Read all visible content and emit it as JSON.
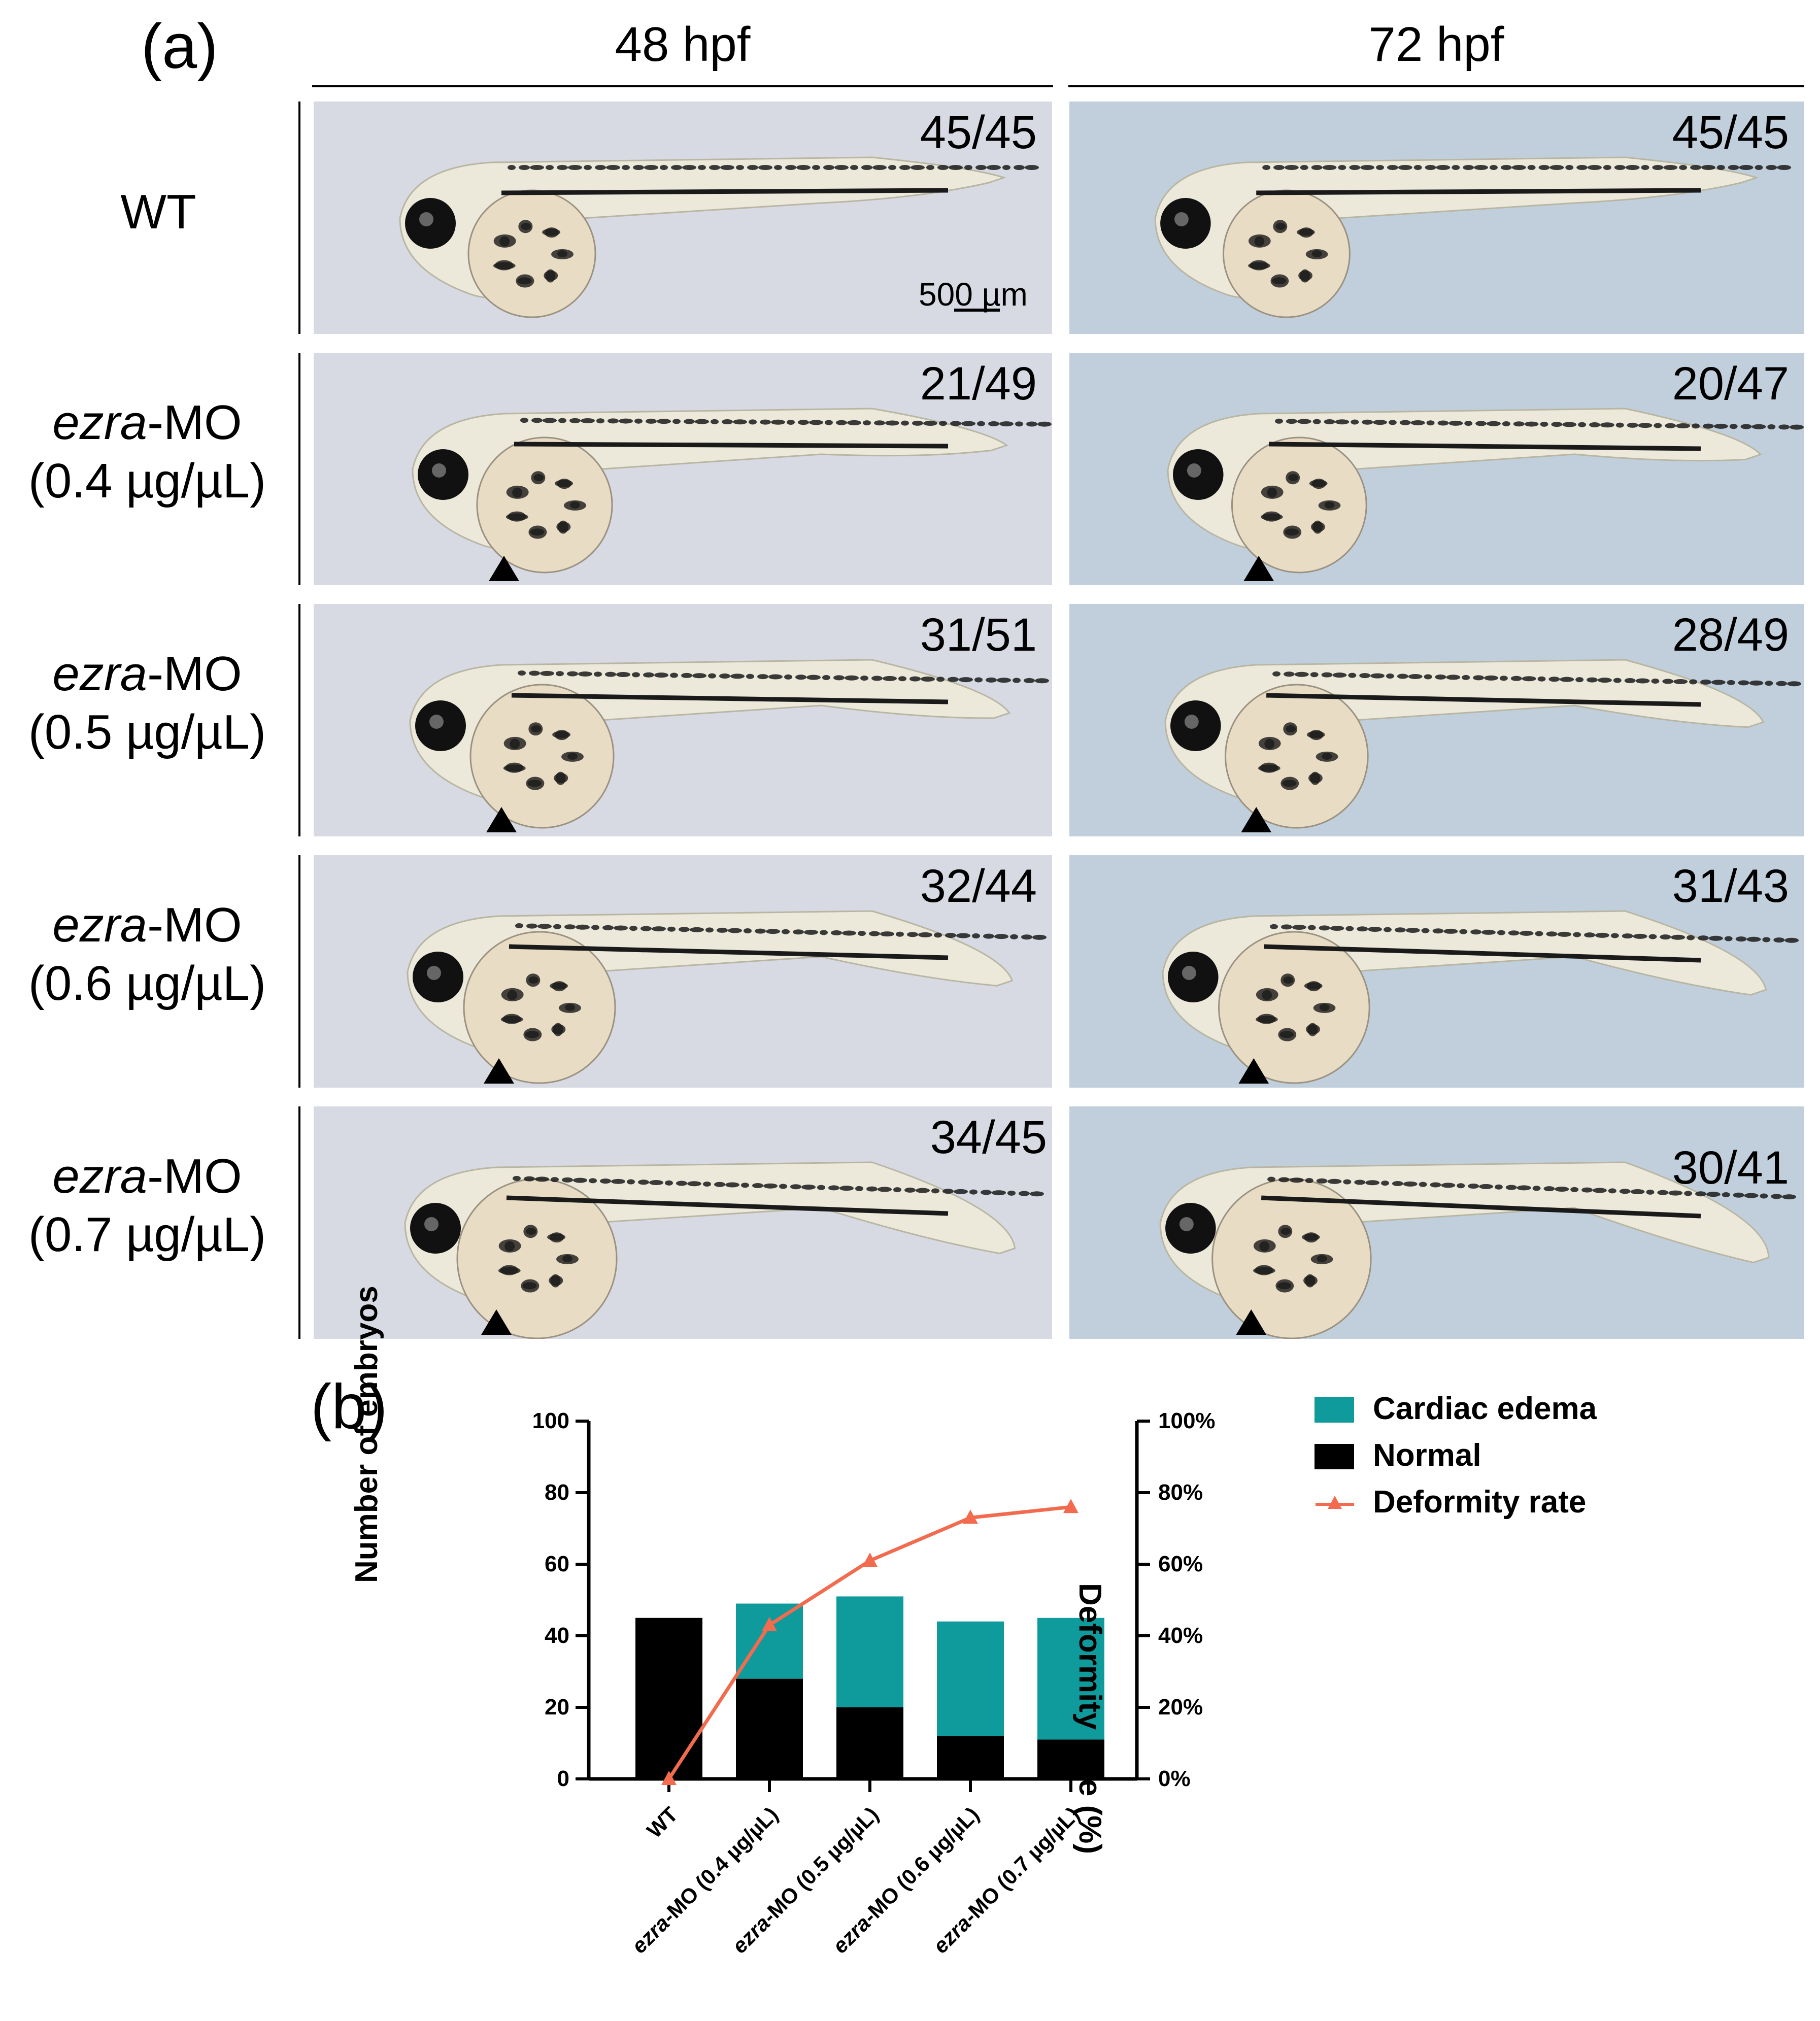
{
  "panel_a": {
    "label": "(a)",
    "columns": [
      "48 hpf",
      "72 hpf"
    ],
    "rows": [
      {
        "line1": "WT",
        "line1_italic": "",
        "line2": "",
        "counts": [
          "45/45",
          "45/45"
        ]
      },
      {
        "line1": "-MO",
        "line1_italic": "ezra",
        "line2": "(0.4 µg/µL)",
        "counts": [
          "21/49",
          "20/47"
        ]
      },
      {
        "line1": "-MO",
        "line1_italic": "ezra",
        "line2": "(0.5 µg/µL)",
        "counts": [
          "31/51",
          "28/49"
        ]
      },
      {
        "line1": "-MO",
        "line1_italic": "ezra",
        "line2": "(0.6 µg/µL)",
        "counts": [
          "32/44",
          "31/43"
        ]
      },
      {
        "line1": "-MO",
        "line1_italic": "ezra",
        "line2": "(0.7 µg/µL)",
        "counts": [
          "34/45",
          "30/41"
        ]
      }
    ],
    "scale_bar": "500 µm",
    "colors": {
      "panel_bg_48": "#d7d9e3",
      "panel_bg_72": "#c0cfdb",
      "yolk": "#e9dcc4",
      "pigment": "#1a1a1a"
    }
  },
  "panel_b": {
    "label": "(b)",
    "legend": [
      "Cardiac edema",
      "Normal",
      "Deformity rate"
    ],
    "colors": {
      "cardiac_edema": "#0f9a9c",
      "normal": "#000000",
      "deformity_rate": "#f26b4f"
    }
  },
  "chart_data": {
    "type": "bar",
    "stacked": true,
    "categories": [
      {
        "italic": "",
        "rest": "WT"
      },
      {
        "italic": "ezra",
        "rest": "-MO (0.4 µg/µL)"
      },
      {
        "italic": "ezra",
        "rest": "-MO (0.5 µg/µL)"
      },
      {
        "italic": "ezra",
        "rest": "-MO (0.6 µg/µL)"
      },
      {
        "italic": "ezra",
        "rest": "-MO (0.7 µg/µL)"
      }
    ],
    "series": [
      {
        "name": "Normal",
        "values": [
          45,
          28,
          20,
          12,
          11
        ]
      },
      {
        "name": "Cardiac edema",
        "values": [
          0,
          21,
          31,
          32,
          34
        ]
      }
    ],
    "line_series": {
      "name": "Deformity rate",
      "values": [
        0,
        43,
        61,
        73,
        76
      ],
      "marker": "triangle"
    },
    "ylabel": "Number of embryos",
    "ylabel_right": "Deformity rate (%)",
    "ylim": [
      0,
      100
    ],
    "ylim_right": [
      0,
      100
    ],
    "yticks": [
      "0",
      "20",
      "40",
      "60",
      "80",
      "100"
    ],
    "yticks_right": [
      "0%",
      "20%",
      "40%",
      "60%",
      "80%",
      "100%"
    ],
    "legend_position": "top-right",
    "grid": false
  }
}
